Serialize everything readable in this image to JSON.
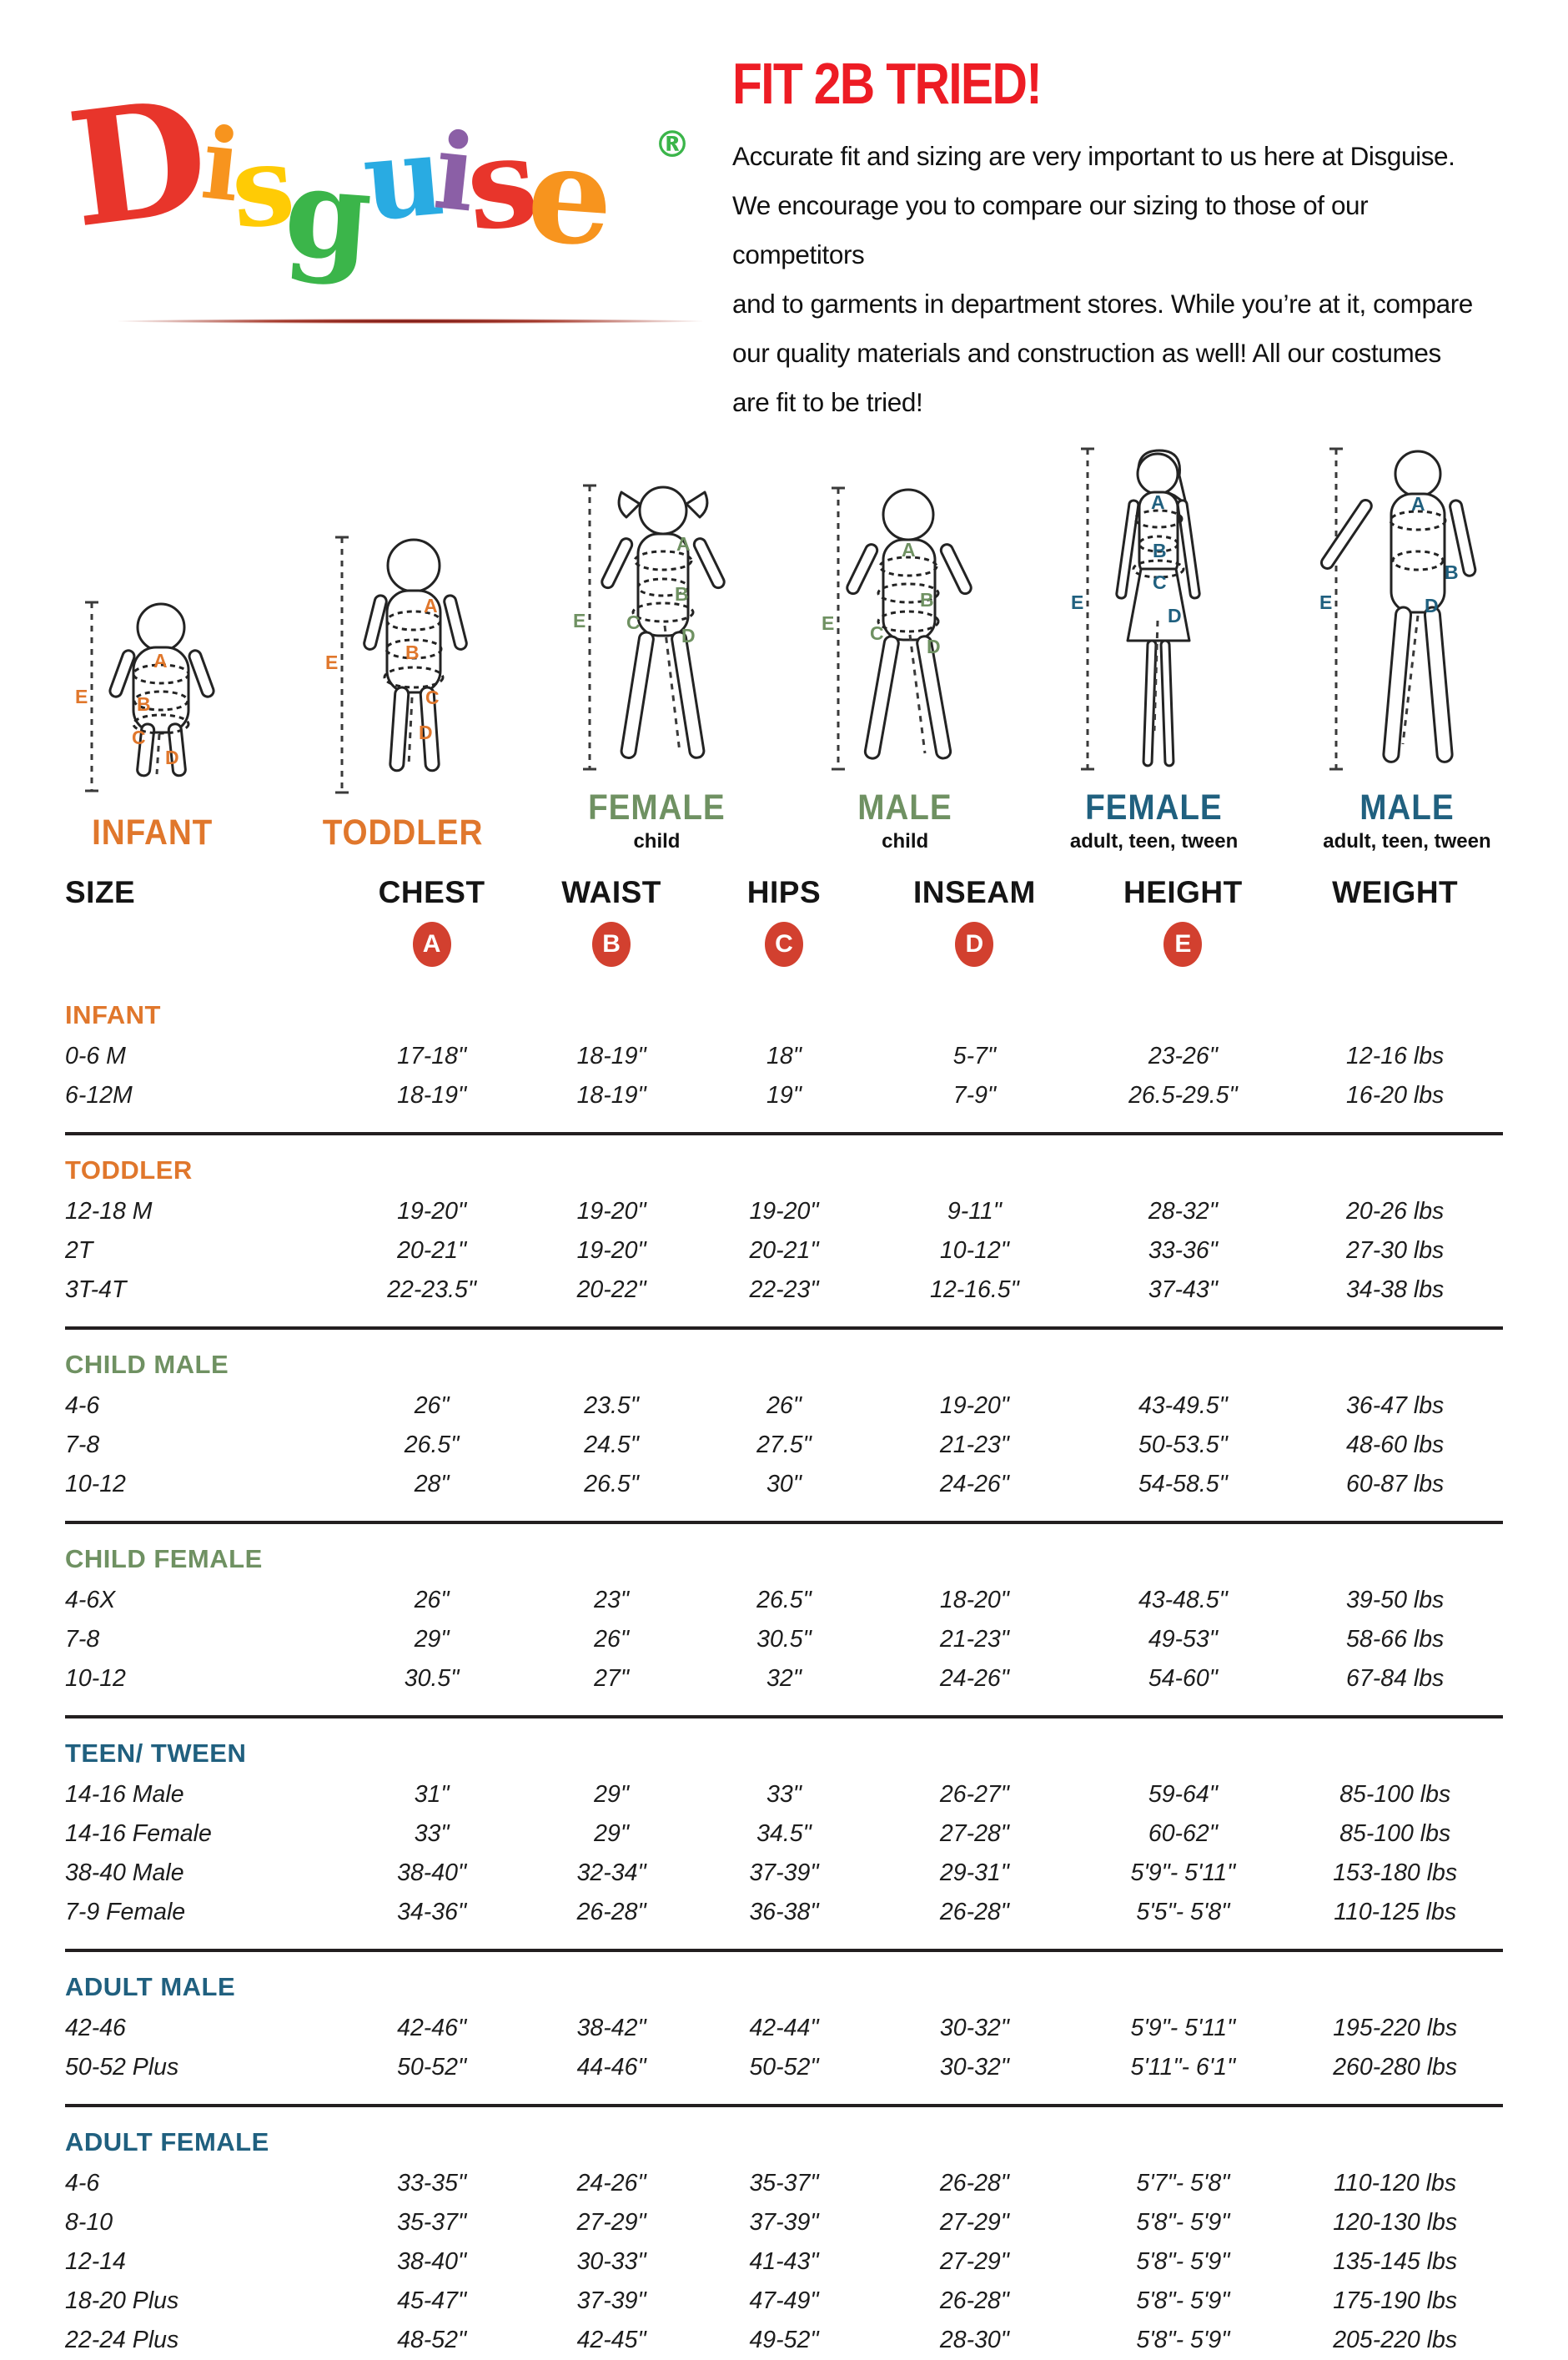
{
  "logo": {
    "letters": [
      {
        "ch": "D",
        "color": "#e8352b"
      },
      {
        "ch": "i",
        "color": "#f7941e"
      },
      {
        "ch": "s",
        "color": "#ffcb05"
      },
      {
        "ch": "g",
        "color": "#3bb54a"
      },
      {
        "ch": "u",
        "color": "#29abe2"
      },
      {
        "ch": "i",
        "color": "#8b5fa6"
      },
      {
        "ch": "s",
        "color": "#e8352b"
      },
      {
        "ch": "e",
        "color": "#f7941e"
      }
    ],
    "registered_mark": "®",
    "registered_color": "#3bb54a"
  },
  "intro": {
    "title": "FIT 2B TRIED!",
    "title_color": "#ed1c24",
    "body_lines": [
      "Accurate fit and sizing are very important to us here at Disguise.",
      "We encourage you to compare our sizing to those of our competitors",
      "and to garments in department stores. While you’re at it, compare",
      "our quality materials and construction as well! All our costumes",
      "are fit to be tried!"
    ]
  },
  "measure_letters": [
    "A",
    "B",
    "C",
    "D",
    "E"
  ],
  "figures": [
    {
      "label": "INFANT",
      "sublabel": "",
      "color": "#e0772c"
    },
    {
      "label": "TODDLER",
      "sublabel": "",
      "color": "#e0772c"
    },
    {
      "label": "FEMALE",
      "sublabel": "child",
      "color": "#6f9162"
    },
    {
      "label": "MALE",
      "sublabel": "child",
      "color": "#6f9162"
    },
    {
      "label": "FEMALE",
      "sublabel": "adult, teen, tween",
      "color": "#20607f"
    },
    {
      "label": "MALE",
      "sublabel": "adult, teen, tween",
      "color": "#20607f"
    }
  ],
  "table": {
    "columns": [
      "SIZE",
      "CHEST",
      "WAIST",
      "HIPS",
      "INSEAM",
      "HEIGHT",
      "WEIGHT"
    ],
    "badge_color": "#d2402f",
    "badges": [
      "A",
      "B",
      "C",
      "D",
      "E"
    ],
    "sections": [
      {
        "name": "INFANT",
        "color": "#e0772c",
        "rows": [
          [
            "0-6 M",
            "17-18\"",
            "18-19\"",
            "18\"",
            "5-7\"",
            "23-26\"",
            "12-16 lbs"
          ],
          [
            "6-12M",
            "18-19\"",
            "18-19\"",
            "19\"",
            "7-9\"",
            "26.5-29.5\"",
            "16-20 lbs"
          ]
        ]
      },
      {
        "name": "TODDLER",
        "color": "#e0772c",
        "rows": [
          [
            "12-18 M",
            "19-20\"",
            "19-20\"",
            "19-20\"",
            "9-11\"",
            "28-32\"",
            "20-26 lbs"
          ],
          [
            "2T",
            "20-21\"",
            "19-20\"",
            "20-21\"",
            "10-12\"",
            "33-36\"",
            "27-30 lbs"
          ],
          [
            "3T-4T",
            "22-23.5\"",
            "20-22\"",
            "22-23\"",
            "12-16.5\"",
            "37-43\"",
            "34-38 lbs"
          ]
        ]
      },
      {
        "name": "CHILD MALE",
        "color": "#6f9162",
        "rows": [
          [
            "4-6",
            "26\"",
            "23.5\"",
            "26\"",
            "19-20\"",
            "43-49.5\"",
            "36-47 lbs"
          ],
          [
            "7-8",
            "26.5\"",
            "24.5\"",
            "27.5\"",
            "21-23\"",
            "50-53.5\"",
            "48-60 lbs"
          ],
          [
            "10-12",
            "28\"",
            "26.5\"",
            "30\"",
            "24-26\"",
            "54-58.5\"",
            "60-87 lbs"
          ]
        ]
      },
      {
        "name": "CHILD FEMALE",
        "color": "#6f9162",
        "rows": [
          [
            "4-6X",
            "26\"",
            "23\"",
            "26.5\"",
            "18-20\"",
            "43-48.5\"",
            "39-50 lbs"
          ],
          [
            "7-8",
            "29\"",
            "26\"",
            "30.5\"",
            "21-23\"",
            "49-53\"",
            "58-66 lbs"
          ],
          [
            "10-12",
            "30.5\"",
            "27\"",
            "32\"",
            "24-26\"",
            "54-60\"",
            "67-84 lbs"
          ]
        ]
      },
      {
        "name": "TEEN/ TWEEN",
        "color": "#20607f",
        "rows": [
          [
            "14-16 Male",
            "31\"",
            "29\"",
            "33\"",
            "26-27\"",
            "59-64\"",
            "85-100 lbs"
          ],
          [
            "14-16 Female",
            "33\"",
            "29\"",
            "34.5\"",
            "27-28\"",
            "60-62\"",
            "85-100 lbs"
          ],
          [
            "38-40 Male",
            "38-40\"",
            "32-34\"",
            "37-39\"",
            "29-31\"",
            "5'9\"- 5'11\"",
            "153-180 lbs"
          ],
          [
            "7-9 Female",
            "34-36\"",
            "26-28\"",
            "36-38\"",
            "26-28\"",
            "5'5\"- 5'8\"",
            "110-125 lbs"
          ]
        ]
      },
      {
        "name": "ADULT MALE",
        "color": "#20607f",
        "rows": [
          [
            "42-46",
            "42-46\"",
            "38-42\"",
            "42-44\"",
            "30-32\"",
            "5'9\"- 5'11\"",
            "195-220 lbs"
          ],
          [
            "50-52 Plus",
            "50-52\"",
            "44-46\"",
            "50-52\"",
            "30-32\"",
            "5'11\"- 6'1\"",
            "260-280 lbs"
          ]
        ]
      },
      {
        "name": "ADULT FEMALE",
        "color": "#20607f",
        "rows": [
          [
            "4-6",
            "33-35\"",
            "24-26\"",
            "35-37\"",
            "26-28\"",
            "5'7\"- 5'8\"",
            "110-120 lbs"
          ],
          [
            "8-10",
            "35-37\"",
            "27-29\"",
            "37-39\"",
            "27-29\"",
            "5'8\"- 5'9\"",
            "120-130 lbs"
          ],
          [
            "12-14",
            "38-40\"",
            "30-33\"",
            "41-43\"",
            "27-29\"",
            "5'8\"- 5'9\"",
            "135-145 lbs"
          ],
          [
            "18-20 Plus",
            "45-47\"",
            "37-39\"",
            "47-49\"",
            "26-28\"",
            "5'8\"- 5'9\"",
            "175-190 lbs"
          ],
          [
            "22-24 Plus",
            "48-52\"",
            "42-45\"",
            "49-52\"",
            "28-30\"",
            "5'8\"- 5'9\"",
            "205-220 lbs"
          ]
        ]
      }
    ]
  }
}
